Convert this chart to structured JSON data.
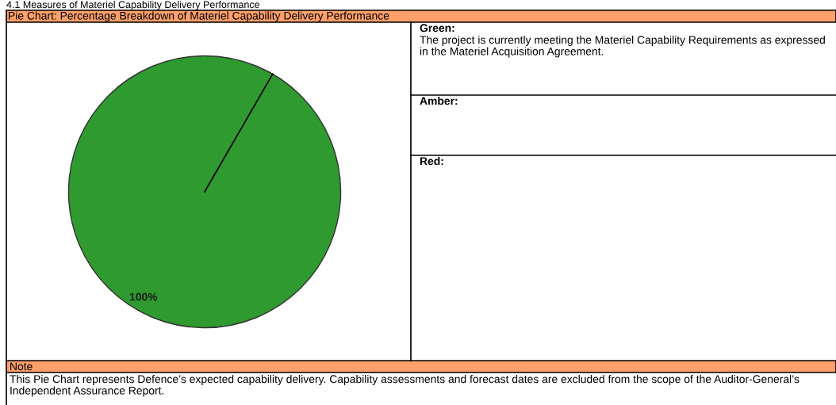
{
  "chart_data": {
    "type": "pie",
    "title": "Pie Chart: Percentage Breakdown of Materiel Capability Delivery Performance",
    "categories": [
      null
    ],
    "values": [
      100
    ],
    "colors": [
      "#2f9a2f"
    ],
    "value_labels": [
      "100%"
    ],
    "annotations": [
      "4.1 Measures of Materiel Capability Delivery Performance",
      "Green:",
      "The project is currently meeting the Materiel Capability Requirements as expressed in the Materiel Acquisition Agreement.",
      "Amber:",
      "Red:",
      "Note",
      "This Pie Chart represents Defence’s expected capability delivery. Capability assessments and forecast dates are excluded from the scope of the Auditor-General’s Independent Assurance Report."
    ],
    "legend": false
  }
}
